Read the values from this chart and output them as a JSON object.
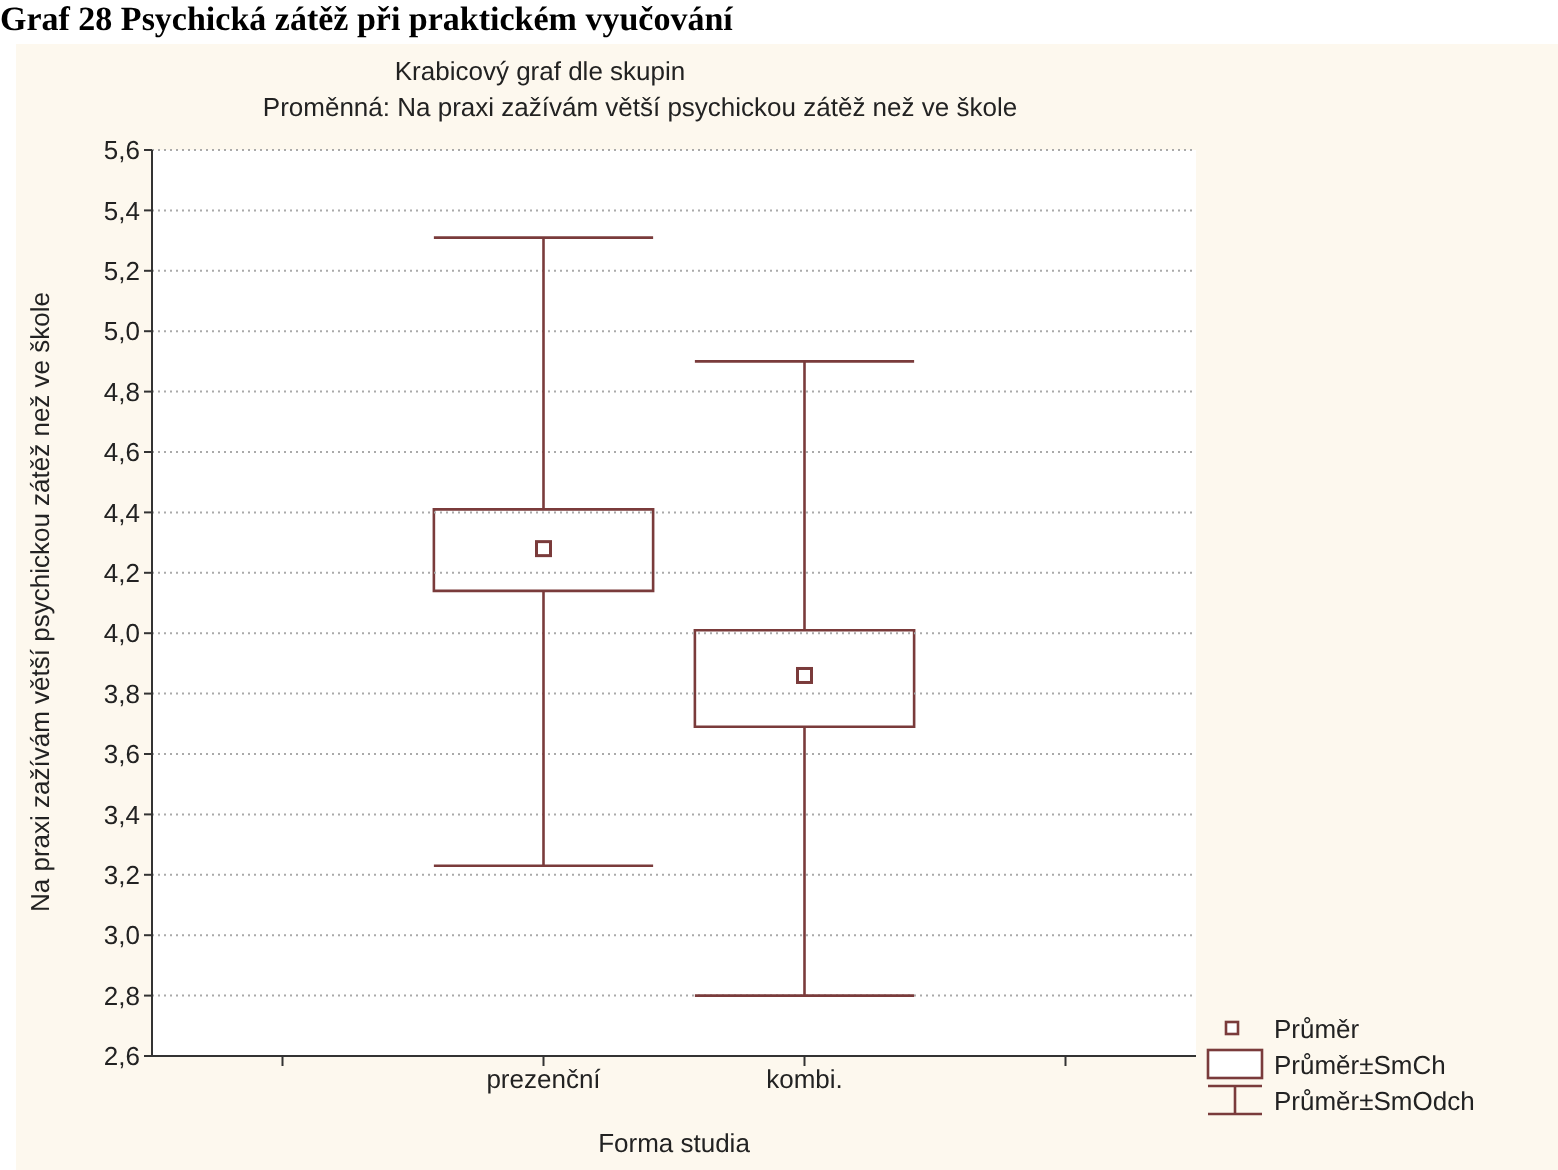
{
  "chart_data": {
    "type": "box",
    "title": "Krabicový graf dle skupin",
    "subtitle": "Proměnná: Na praxi zažívám větší psychickou zátěž než ve škole",
    "xlabel": "Forma studia",
    "ylabel": "Na praxi zažívám větší psychickou zátěž než ve škole",
    "categories": [
      "prezenční",
      "kombi."
    ],
    "boxes": [
      {
        "low": 3.23,
        "q1": 4.14,
        "q3": 4.41,
        "high": 5.31,
        "mean": 4.28
      },
      {
        "low": 2.8,
        "q1": 3.69,
        "q3": 4.01,
        "high": 4.9,
        "mean": 3.86
      }
    ],
    "color": "#7a3b3b",
    "ylim": [
      2.6,
      5.6
    ],
    "yticks": [
      {
        "value": 2.6,
        "label": "2,6"
      },
      {
        "value": 2.8,
        "label": "2,8"
      },
      {
        "value": 3.0,
        "label": "3,0"
      },
      {
        "value": 3.2,
        "label": "3,2"
      },
      {
        "value": 3.4,
        "label": "3,4"
      },
      {
        "value": 3.6,
        "label": "3,6"
      },
      {
        "value": 3.8,
        "label": "3,8"
      },
      {
        "value": 4.0,
        "label": "4,0"
      },
      {
        "value": 4.2,
        "label": "4,2"
      },
      {
        "value": 4.4,
        "label": "4,4"
      },
      {
        "value": 4.6,
        "label": "4,6"
      },
      {
        "value": 4.8,
        "label": "4,8"
      },
      {
        "value": 5.0,
        "label": "5,0"
      },
      {
        "value": 5.2,
        "label": "5,2"
      },
      {
        "value": 5.4,
        "label": "5,4"
      },
      {
        "value": 5.6,
        "label": "5,6"
      }
    ],
    "grid": "y",
    "marker": "square",
    "annotations": [
      "Graf 28 Psychická zátěž při praktickém vyučování",
      "Průměr",
      "Průměr±SmCh",
      "Průměr±SmOdch"
    ]
  }
}
